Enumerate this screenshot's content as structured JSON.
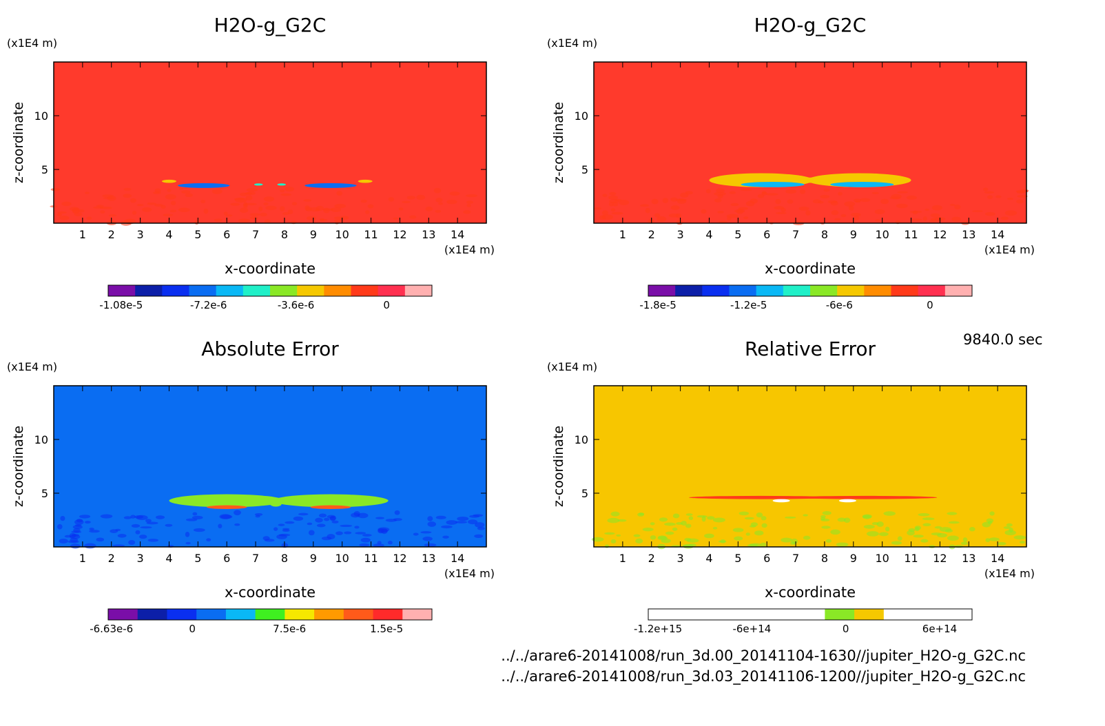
{
  "chart_data": [
    {
      "type": "heatmap",
      "title": "H2O-g_G2C",
      "xlabel": "x-coordinate",
      "ylabel": "z-coordinate",
      "x_unit": "(x1E4 m)",
      "y_unit": "(x1E4 m)",
      "xlim": [
        0,
        15
      ],
      "ylim": [
        0,
        15
      ],
      "x_ticks": [
        "1",
        "2",
        "3",
        "4",
        "5",
        "6",
        "7",
        "8",
        "9",
        "10",
        "11",
        "12",
        "13",
        "14"
      ],
      "y_ticks": [
        "5",
        "10"
      ],
      "background": "#ff3a2c",
      "colorbar": {
        "colors": [
          "#7a0ea8",
          "#0c1fa8",
          "#0a2ff0",
          "#0a6df2",
          "#0ab8f5",
          "#20f0c8",
          "#8ae826",
          "#f5c800",
          "#ff8c00",
          "#ff3a1a",
          "#ff3050",
          "#ffb0b0"
        ],
        "labels": [
          "-1.08e-5",
          "-7.2e-6",
          "-3.6e-6",
          "0"
        ],
        "label_positions": [
          0.04,
          0.31,
          0.58,
          0.86
        ]
      },
      "features": [
        {
          "x": 5.2,
          "z": 3.5,
          "width": 1.8,
          "height": 0.45,
          "color": "#0a6df2"
        },
        {
          "x": 9.6,
          "z": 3.5,
          "width": 1.8,
          "height": 0.45,
          "color": "#0a6df2"
        },
        {
          "x": 4.0,
          "z": 3.9,
          "width": 0.5,
          "height": 0.3,
          "color": "#f5c800"
        },
        {
          "x": 10.8,
          "z": 3.9,
          "width": 0.5,
          "height": 0.3,
          "color": "#f5c800"
        },
        {
          "x": 7.1,
          "z": 3.6,
          "width": 0.3,
          "height": 0.2,
          "color": "#20f0c8"
        },
        {
          "x": 7.9,
          "z": 3.6,
          "width": 0.3,
          "height": 0.2,
          "color": "#20f0c8"
        }
      ]
    },
    {
      "type": "heatmap",
      "title": "H2O-g_G2C",
      "xlabel": "x-coordinate",
      "ylabel": "z-coordinate",
      "x_unit": "(x1E4 m)",
      "y_unit": "(x1E4 m)",
      "xlim": [
        0,
        15
      ],
      "ylim": [
        0,
        15
      ],
      "x_ticks": [
        "1",
        "2",
        "3",
        "4",
        "5",
        "6",
        "7",
        "8",
        "9",
        "10",
        "11",
        "12",
        "13",
        "14"
      ],
      "y_ticks": [
        "5",
        "10"
      ],
      "background": "#ff3a2c",
      "colorbar": {
        "colors": [
          "#7a0ea8",
          "#0c1fa8",
          "#0a2ff0",
          "#0a6df2",
          "#0ab8f5",
          "#20f0c8",
          "#8ae826",
          "#f5c800",
          "#ff8c00",
          "#ff3a1a",
          "#ff3050",
          "#ffb0b0"
        ],
        "labels": [
          "-1.8e-5",
          "-1.2e-5",
          "-6e-6",
          "0"
        ],
        "label_positions": [
          0.03,
          0.31,
          0.59,
          0.87
        ]
      },
      "features": [
        {
          "x": 5.8,
          "z": 4.0,
          "width": 3.6,
          "height": 1.3,
          "color": "#f5c800"
        },
        {
          "x": 9.2,
          "z": 4.0,
          "width": 3.6,
          "height": 1.3,
          "color": "#f5c800"
        },
        {
          "x": 6.2,
          "z": 3.6,
          "width": 2.2,
          "height": 0.5,
          "color": "#0ab8f5"
        },
        {
          "x": 9.3,
          "z": 3.6,
          "width": 2.2,
          "height": 0.5,
          "color": "#0ab8f5"
        },
        {
          "x": 7.5,
          "z": 4.0,
          "width": 0.4,
          "height": 0.5,
          "color": "#f5c800"
        }
      ]
    },
    {
      "type": "heatmap",
      "title": "Absolute Error",
      "xlabel": "x-coordinate",
      "ylabel": "z-coordinate",
      "x_unit": "(x1E4 m)",
      "y_unit": "(x1E4 m)",
      "xlim": [
        0,
        15
      ],
      "ylim": [
        0,
        15
      ],
      "x_ticks": [
        "1",
        "2",
        "3",
        "4",
        "5",
        "6",
        "7",
        "8",
        "9",
        "10",
        "11",
        "12",
        "13",
        "14"
      ],
      "y_ticks": [
        "5",
        "10"
      ],
      "background": "#0a6df2",
      "colorbar": {
        "colors": [
          "#7a0ea8",
          "#0c1fa8",
          "#0a2ff0",
          "#0a6df2",
          "#0ab8f5",
          "#3ff020",
          "#f5e800",
          "#ff9a00",
          "#ff5a1a",
          "#ff2a2a",
          "#ffb0b0"
        ],
        "labels": [
          "-6.63e-6",
          "0",
          "7.5e-6",
          "1.5e-5"
        ],
        "label_positions": [
          0.01,
          0.26,
          0.56,
          0.86
        ]
      },
      "features": [
        {
          "x": 6.0,
          "z": 4.3,
          "width": 4.0,
          "height": 1.2,
          "color": "#8ae826"
        },
        {
          "x": 9.6,
          "z": 4.3,
          "width": 4.0,
          "height": 1.2,
          "color": "#8ae826"
        },
        {
          "x": 6.0,
          "z": 3.7,
          "width": 1.4,
          "height": 0.35,
          "color": "#ff5a1a"
        },
        {
          "x": 9.6,
          "z": 3.7,
          "width": 1.4,
          "height": 0.35,
          "color": "#ff5a1a"
        },
        {
          "x": 7.7,
          "z": 4.0,
          "width": 0.4,
          "height": 0.5,
          "color": "#8ae826"
        }
      ]
    },
    {
      "type": "heatmap",
      "title": "Relative Error",
      "xlabel": "x-coordinate",
      "ylabel": "z-coordinate",
      "x_unit": "(x1E4 m)",
      "y_unit": "(x1E4 m)",
      "xlim": [
        0,
        15
      ],
      "ylim": [
        0,
        15
      ],
      "x_ticks": [
        "1",
        "2",
        "3",
        "4",
        "5",
        "6",
        "7",
        "8",
        "9",
        "10",
        "11",
        "12",
        "13",
        "14"
      ],
      "y_ticks": [
        "5",
        "10"
      ],
      "background": "#f7c600",
      "colorbar": {
        "colors": [
          "#ffffff",
          "#ffffff",
          "#ffffff",
          "#ffffff",
          "#ffffff",
          "#ffffff",
          "#8ae826",
          "#f5c800",
          "#ffffff",
          "#ffffff",
          "#ffffff"
        ],
        "labels": [
          "-1.2e+15",
          "-6e+14",
          "0",
          "6e+14"
        ],
        "label_positions": [
          0.03,
          0.32,
          0.61,
          0.9
        ]
      },
      "features": [
        {
          "x": 5.8,
          "z": 4.6,
          "width": 5.0,
          "height": 0.3,
          "color": "#ff3a1a"
        },
        {
          "x": 9.4,
          "z": 4.6,
          "width": 5.0,
          "height": 0.3,
          "color": "#ff3a1a"
        },
        {
          "x": 6.5,
          "z": 4.3,
          "width": 0.6,
          "height": 0.3,
          "color": "#ffffff"
        },
        {
          "x": 8.8,
          "z": 4.3,
          "width": 0.6,
          "height": 0.3,
          "color": "#ffffff"
        }
      ]
    }
  ],
  "time_label": "9840.0 sec",
  "footer": {
    "file1": "../../arare6-20141008/run_3d.00_20141104-1630//jupiter_H2O-g_G2C.nc",
    "file2": "../../arare6-20141008/run_3d.03_20141106-1200//jupiter_H2O-g_G2C.nc"
  }
}
